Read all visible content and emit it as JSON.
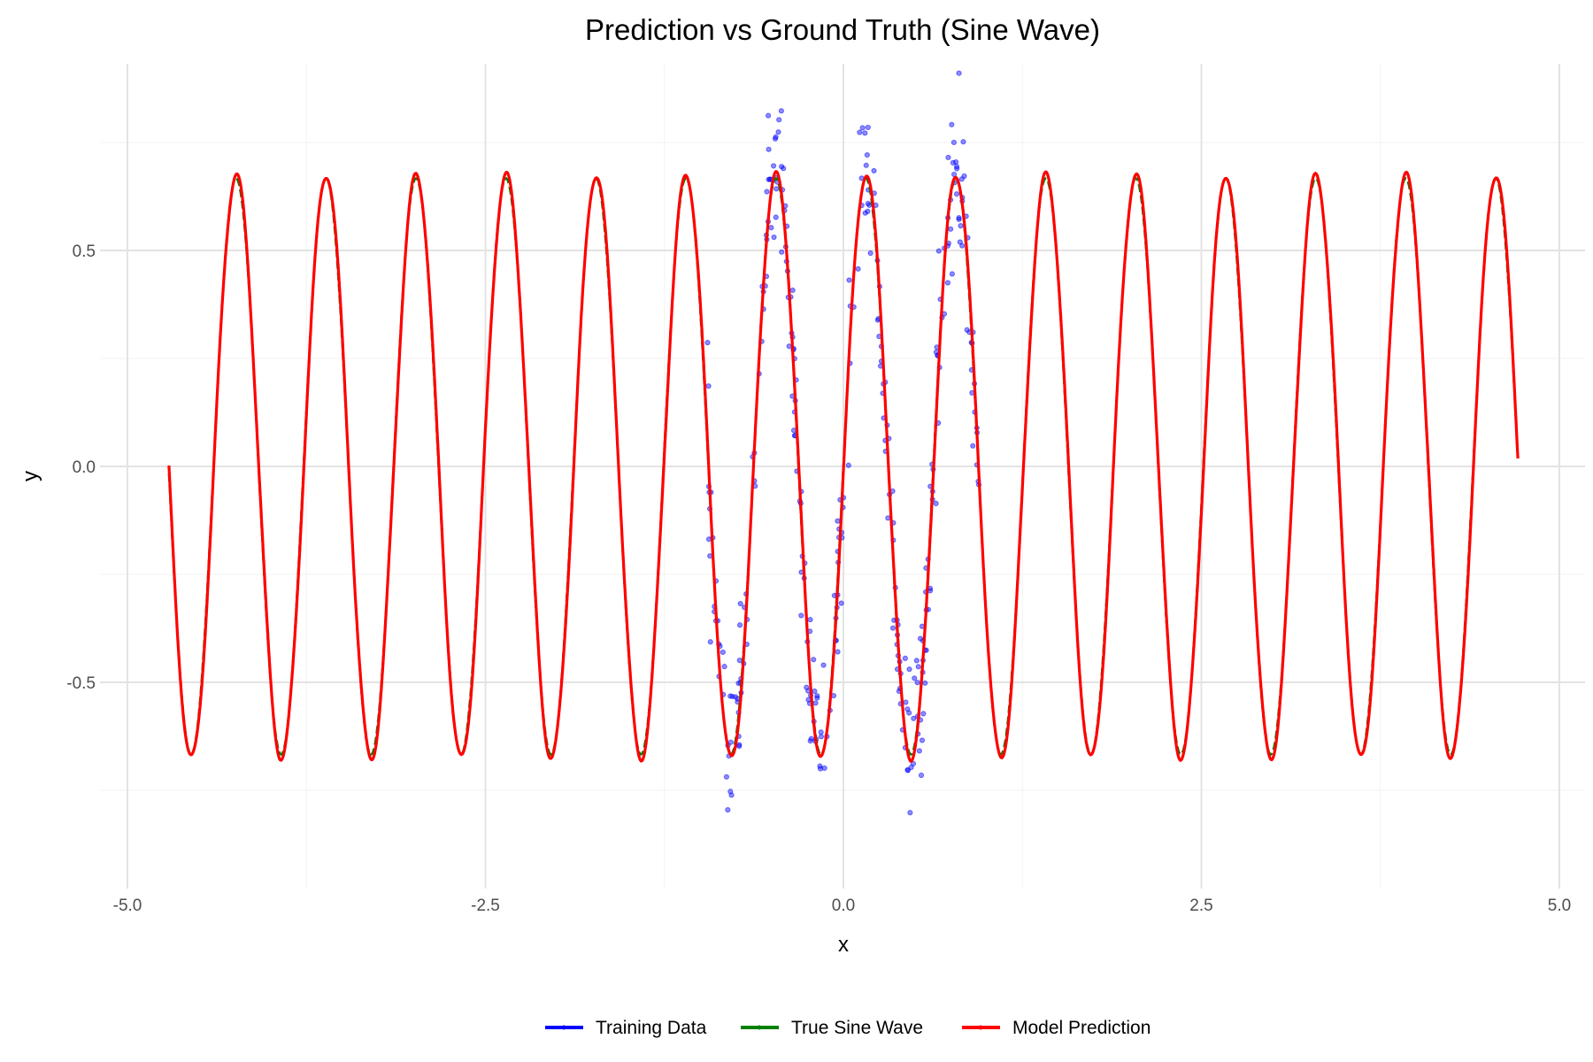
{
  "chart_data": {
    "type": "line",
    "title": "Prediction vs Ground Truth (Sine Wave)",
    "xlabel": "x",
    "ylabel": "y",
    "xlim": [
      -5.2,
      5.2
    ],
    "ylim": [
      -0.97,
      0.93
    ],
    "x_ticks": [
      -5.0,
      -2.5,
      0.0,
      2.5,
      5.0
    ],
    "x_tick_labels": [
      "-5.0",
      "-2.5",
      "0.0",
      "2.5",
      "5.0"
    ],
    "y_ticks": [
      -0.5,
      0.0,
      0.5
    ],
    "y_tick_labels": [
      "-0.5",
      "0.0",
      "0.5"
    ],
    "grid": true,
    "legend_position": "bottom",
    "series": [
      {
        "name": "Training Data",
        "kind": "scatter",
        "color": "#0000ff",
        "x_range": [
          -0.95,
          0.95
        ],
        "n_points": 320,
        "function": "0.667*sin(10x) + noise",
        "noise_std": 0.09,
        "opacity": 0.5
      },
      {
        "name": "True Sine Wave",
        "kind": "line-dashed",
        "color": "#008000",
        "x_range": [
          -4.71,
          4.71
        ],
        "amplitude": 0.667,
        "frequency": 10,
        "phase": 0
      },
      {
        "name": "Model Prediction",
        "kind": "line",
        "color": "#ff0000",
        "x_range": [
          -4.71,
          4.71
        ],
        "amplitude": 0.675,
        "frequency": 10,
        "phase": -0.015
      }
    ]
  }
}
